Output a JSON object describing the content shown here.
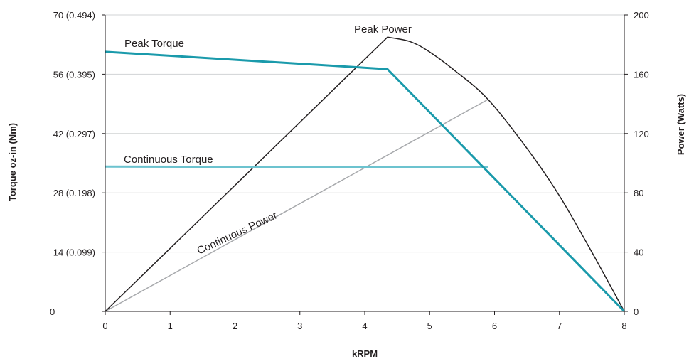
{
  "chart_data": {
    "type": "line",
    "xlabel": "kRPM",
    "ylabel_left": "Torque oz-in (Nm)",
    "ylabel_right": "Power (Watts)",
    "xlim": [
      0,
      8
    ],
    "ylim_left": [
      0,
      70
    ],
    "ylim_right": [
      0,
      200
    ],
    "x_ticks": [
      "0",
      "1",
      "2",
      "3",
      "4",
      "5",
      "6",
      "7",
      "8"
    ],
    "y_left_ticks": [
      {
        "value": 0,
        "label": "0"
      },
      {
        "value": 14,
        "label": "14 (0.099)"
      },
      {
        "value": 28,
        "label": "28 (0.198)"
      },
      {
        "value": 42,
        "label": "42 (0.297)"
      },
      {
        "value": 56,
        "label": "56 (0.395)"
      },
      {
        "value": 70,
        "label": "70 (0.494)"
      }
    ],
    "y_right_ticks": [
      {
        "value": 0,
        "label": "0"
      },
      {
        "value": 40,
        "label": "40"
      },
      {
        "value": 80,
        "label": "80"
      },
      {
        "value": 120,
        "label": "120"
      },
      {
        "value": 160,
        "label": "160"
      },
      {
        "value": 200,
        "label": "200"
      }
    ],
    "grid": true,
    "series": [
      {
        "name": "Peak Torque",
        "axis": "left",
        "color": "#1a9aab",
        "points": [
          [
            0,
            61.3
          ],
          [
            4.35,
            57.2
          ],
          [
            8,
            0
          ]
        ]
      },
      {
        "name": "Continuous Torque",
        "axis": "left",
        "color": "#6cc3cf",
        "points": [
          [
            0,
            34.2
          ],
          [
            5.9,
            34.0
          ]
        ]
      },
      {
        "name": "Peak Power",
        "axis": "right",
        "color": "#231f20",
        "points": [
          [
            0,
            0
          ],
          [
            4.35,
            185
          ],
          [
            4.7,
            182
          ],
          [
            5.0,
            175
          ],
          [
            5.4,
            162
          ],
          [
            5.9,
            143
          ],
          [
            6.5,
            110
          ],
          [
            7.0,
            78
          ],
          [
            7.5,
            40
          ],
          [
            8,
            0
          ]
        ]
      },
      {
        "name": "Continuous Power",
        "axis": "right",
        "color": "#a7a9ac",
        "points": [
          [
            0,
            0
          ],
          [
            5.9,
            143
          ]
        ]
      }
    ]
  }
}
